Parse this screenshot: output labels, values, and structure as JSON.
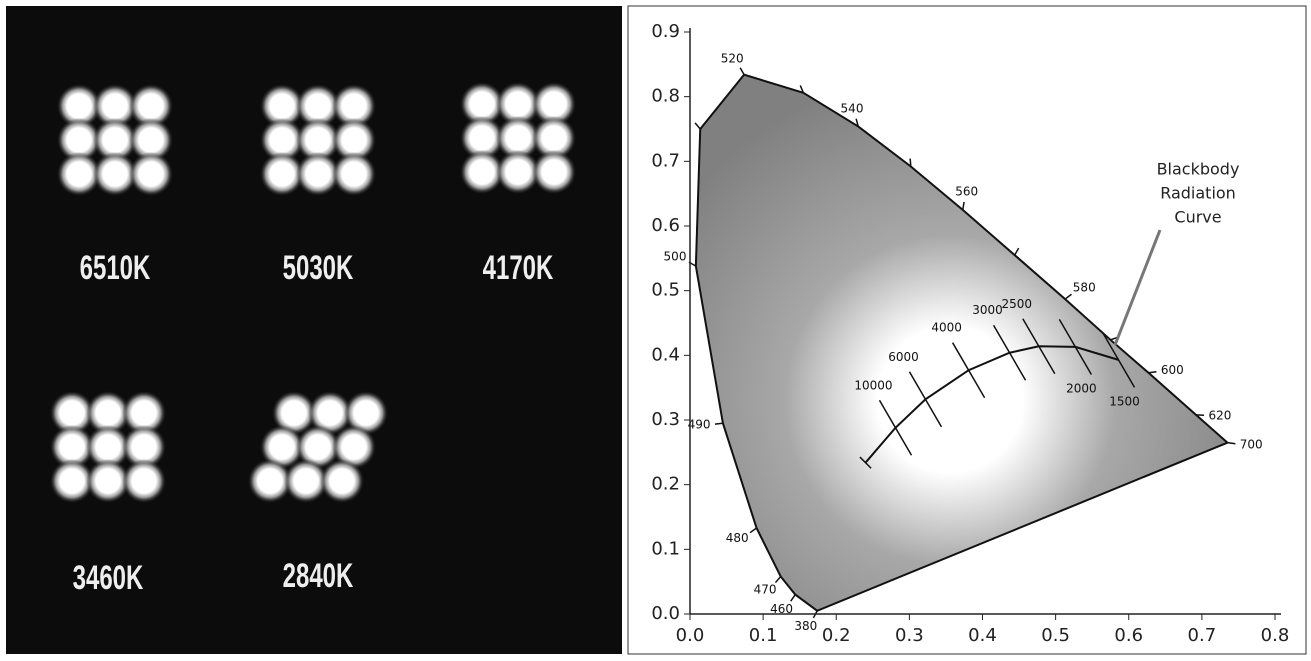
{
  "photo": {
    "labels": [
      "6510K",
      "5030K",
      "4170K",
      "3460K",
      "2840K"
    ]
  },
  "chart_data": {
    "type": "chromaticity",
    "xlim": [
      0,
      0.8
    ],
    "ylim": [
      0,
      0.9
    ],
    "xticks": [
      {
        "value": 0,
        "label": "0.0"
      },
      0.1,
      0.2,
      0.3,
      0.4,
      0.5,
      0.6,
      0.7,
      0.8
    ],
    "yticks": [
      {
        "value": 0,
        "label": "0.0"
      },
      0.1,
      0.2,
      0.3,
      0.4,
      0.5,
      0.6,
      0.7,
      0.8,
      0.9
    ],
    "spectral_locus": {
      "x": [
        0.174,
        0.144,
        0.124,
        0.091,
        0.045,
        0.008,
        0.014,
        0.074,
        0.155,
        0.23,
        0.302,
        0.373,
        0.444,
        0.513,
        0.575,
        0.627,
        0.692,
        0.735
      ],
      "y": [
        0.005,
        0.03,
        0.058,
        0.133,
        0.295,
        0.538,
        0.75,
        0.834,
        0.806,
        0.754,
        0.692,
        0.625,
        0.555,
        0.487,
        0.424,
        0.373,
        0.308,
        0.265
      ],
      "wavelengths": [
        "380",
        "460",
        "470",
        "480",
        "490",
        "500",
        null,
        "520",
        null,
        "540",
        null,
        "560",
        null,
        "580",
        null,
        "600",
        "620",
        "700"
      ]
    },
    "blackbody": {
      "x": [
        0.24,
        0.281,
        0.322,
        0.381,
        0.437,
        0.477,
        0.527,
        0.586
      ],
      "y": [
        0.234,
        0.288,
        0.332,
        0.377,
        0.404,
        0.414,
        0.413,
        0.393
      ],
      "temperatures": [
        null,
        "10000",
        "6000",
        "4000",
        "3000",
        "2500",
        "2000",
        "1500"
      ]
    },
    "annotation": [
      "Blackbody",
      "Radiation",
      "Curve"
    ]
  }
}
